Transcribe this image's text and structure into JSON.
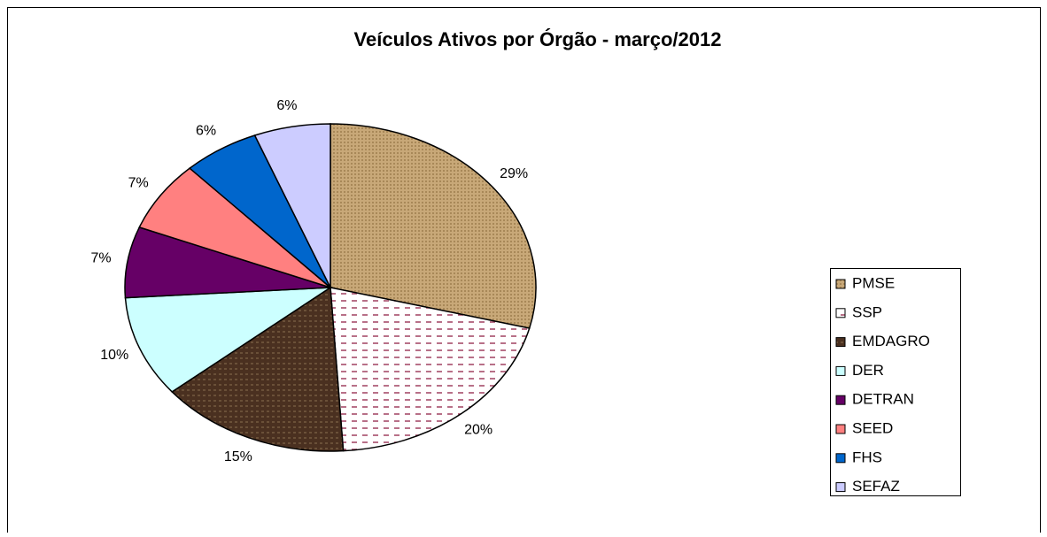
{
  "chart_data": {
    "type": "pie",
    "title": "Veículos Ativos por Órgão - março/2012",
    "categories": [
      "PMSE",
      "SSP",
      "EMDAGRO",
      "DER",
      "DETRAN",
      "SEED",
      "FHS",
      "SEFAZ"
    ],
    "values": [
      29,
      20,
      15,
      10,
      7,
      7,
      6,
      6
    ],
    "value_labels": [
      "29%",
      "20%",
      "15%",
      "10%",
      "7%",
      "7%",
      "6%",
      "6%"
    ],
    "colors": [
      "#c8a878",
      "#ffffff",
      "#4a3020",
      "#ccffff",
      "#660066",
      "#ff8080",
      "#0066cc",
      "#ccccff"
    ],
    "legend": "right"
  }
}
